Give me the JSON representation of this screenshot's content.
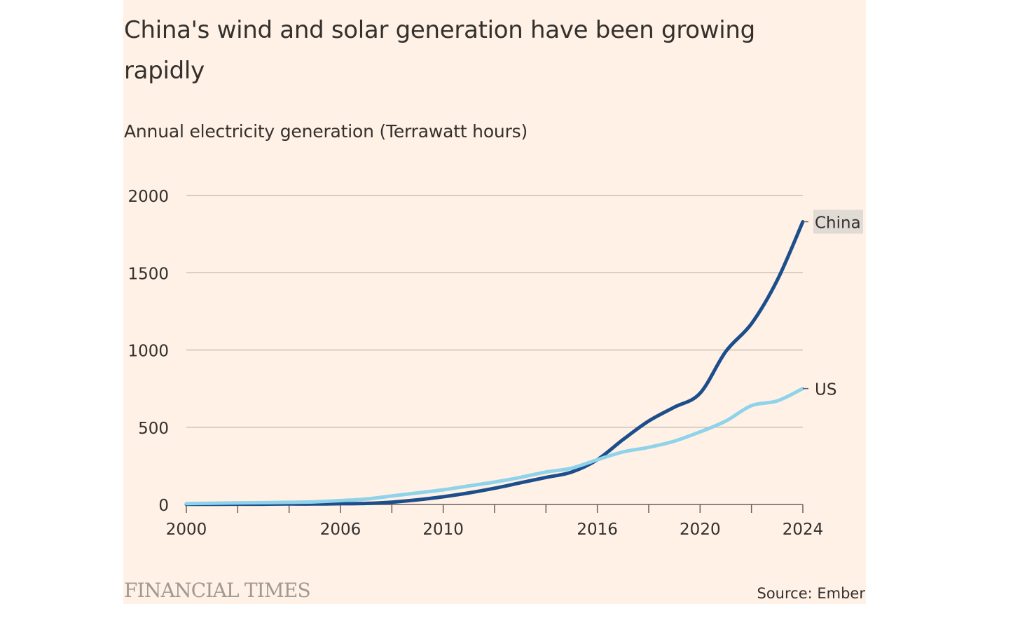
{
  "title": "China's wind and solar generation have been growing rapidly",
  "subtitle": "Annual electricity generation (Terrawatt hours)",
  "footer": {
    "brand": "FINANCIAL TIMES",
    "source": "Source: Ember"
  },
  "colors": {
    "background": "#fff1e5",
    "china": "#1d4e8c",
    "us": "#8fd3ea",
    "gridline": "#ccc1b7",
    "axis": "#66605c",
    "text": "#33302e",
    "label_highlight": "#e0dbd5"
  },
  "chart_data": {
    "type": "line",
    "title": "China's wind and solar generation have been growing rapidly",
    "subtitle": "Annual electricity generation (Terrawatt hours)",
    "xlabel": "",
    "ylabel": "Annual electricity generation (Terrawatt hours)",
    "xlim": [
      2000,
      2024
    ],
    "ylim": [
      0,
      2000
    ],
    "yticks": [
      0,
      500,
      1000,
      1500,
      2000
    ],
    "xticks": [
      2000,
      2002,
      2004,
      2006,
      2008,
      2010,
      2012,
      2014,
      2016,
      2018,
      2020,
      2022,
      2024
    ],
    "xtick_labels": [
      "2000",
      "2006",
      "2010",
      "2016",
      "2020",
      "2024"
    ],
    "grid": true,
    "legend": "direct labels at line ends",
    "x": [
      2000,
      2001,
      2002,
      2003,
      2004,
      2005,
      2006,
      2007,
      2008,
      2009,
      2010,
      2011,
      2012,
      2013,
      2014,
      2015,
      2016,
      2017,
      2018,
      2019,
      2020,
      2021,
      2022,
      2023,
      2024
    ],
    "series": [
      {
        "name": "China",
        "values": [
          1,
          1,
          2,
          2,
          3,
          3,
          5,
          7,
          15,
          30,
          50,
          75,
          105,
          140,
          175,
          210,
          290,
          420,
          540,
          630,
          720,
          990,
          1170,
          1450,
          1830
        ]
      },
      {
        "name": "US",
        "values": [
          6,
          8,
          10,
          12,
          14,
          17,
          25,
          35,
          55,
          75,
          95,
          120,
          145,
          175,
          210,
          235,
          290,
          340,
          370,
          410,
          470,
          540,
          640,
          670,
          750
        ]
      }
    ]
  }
}
